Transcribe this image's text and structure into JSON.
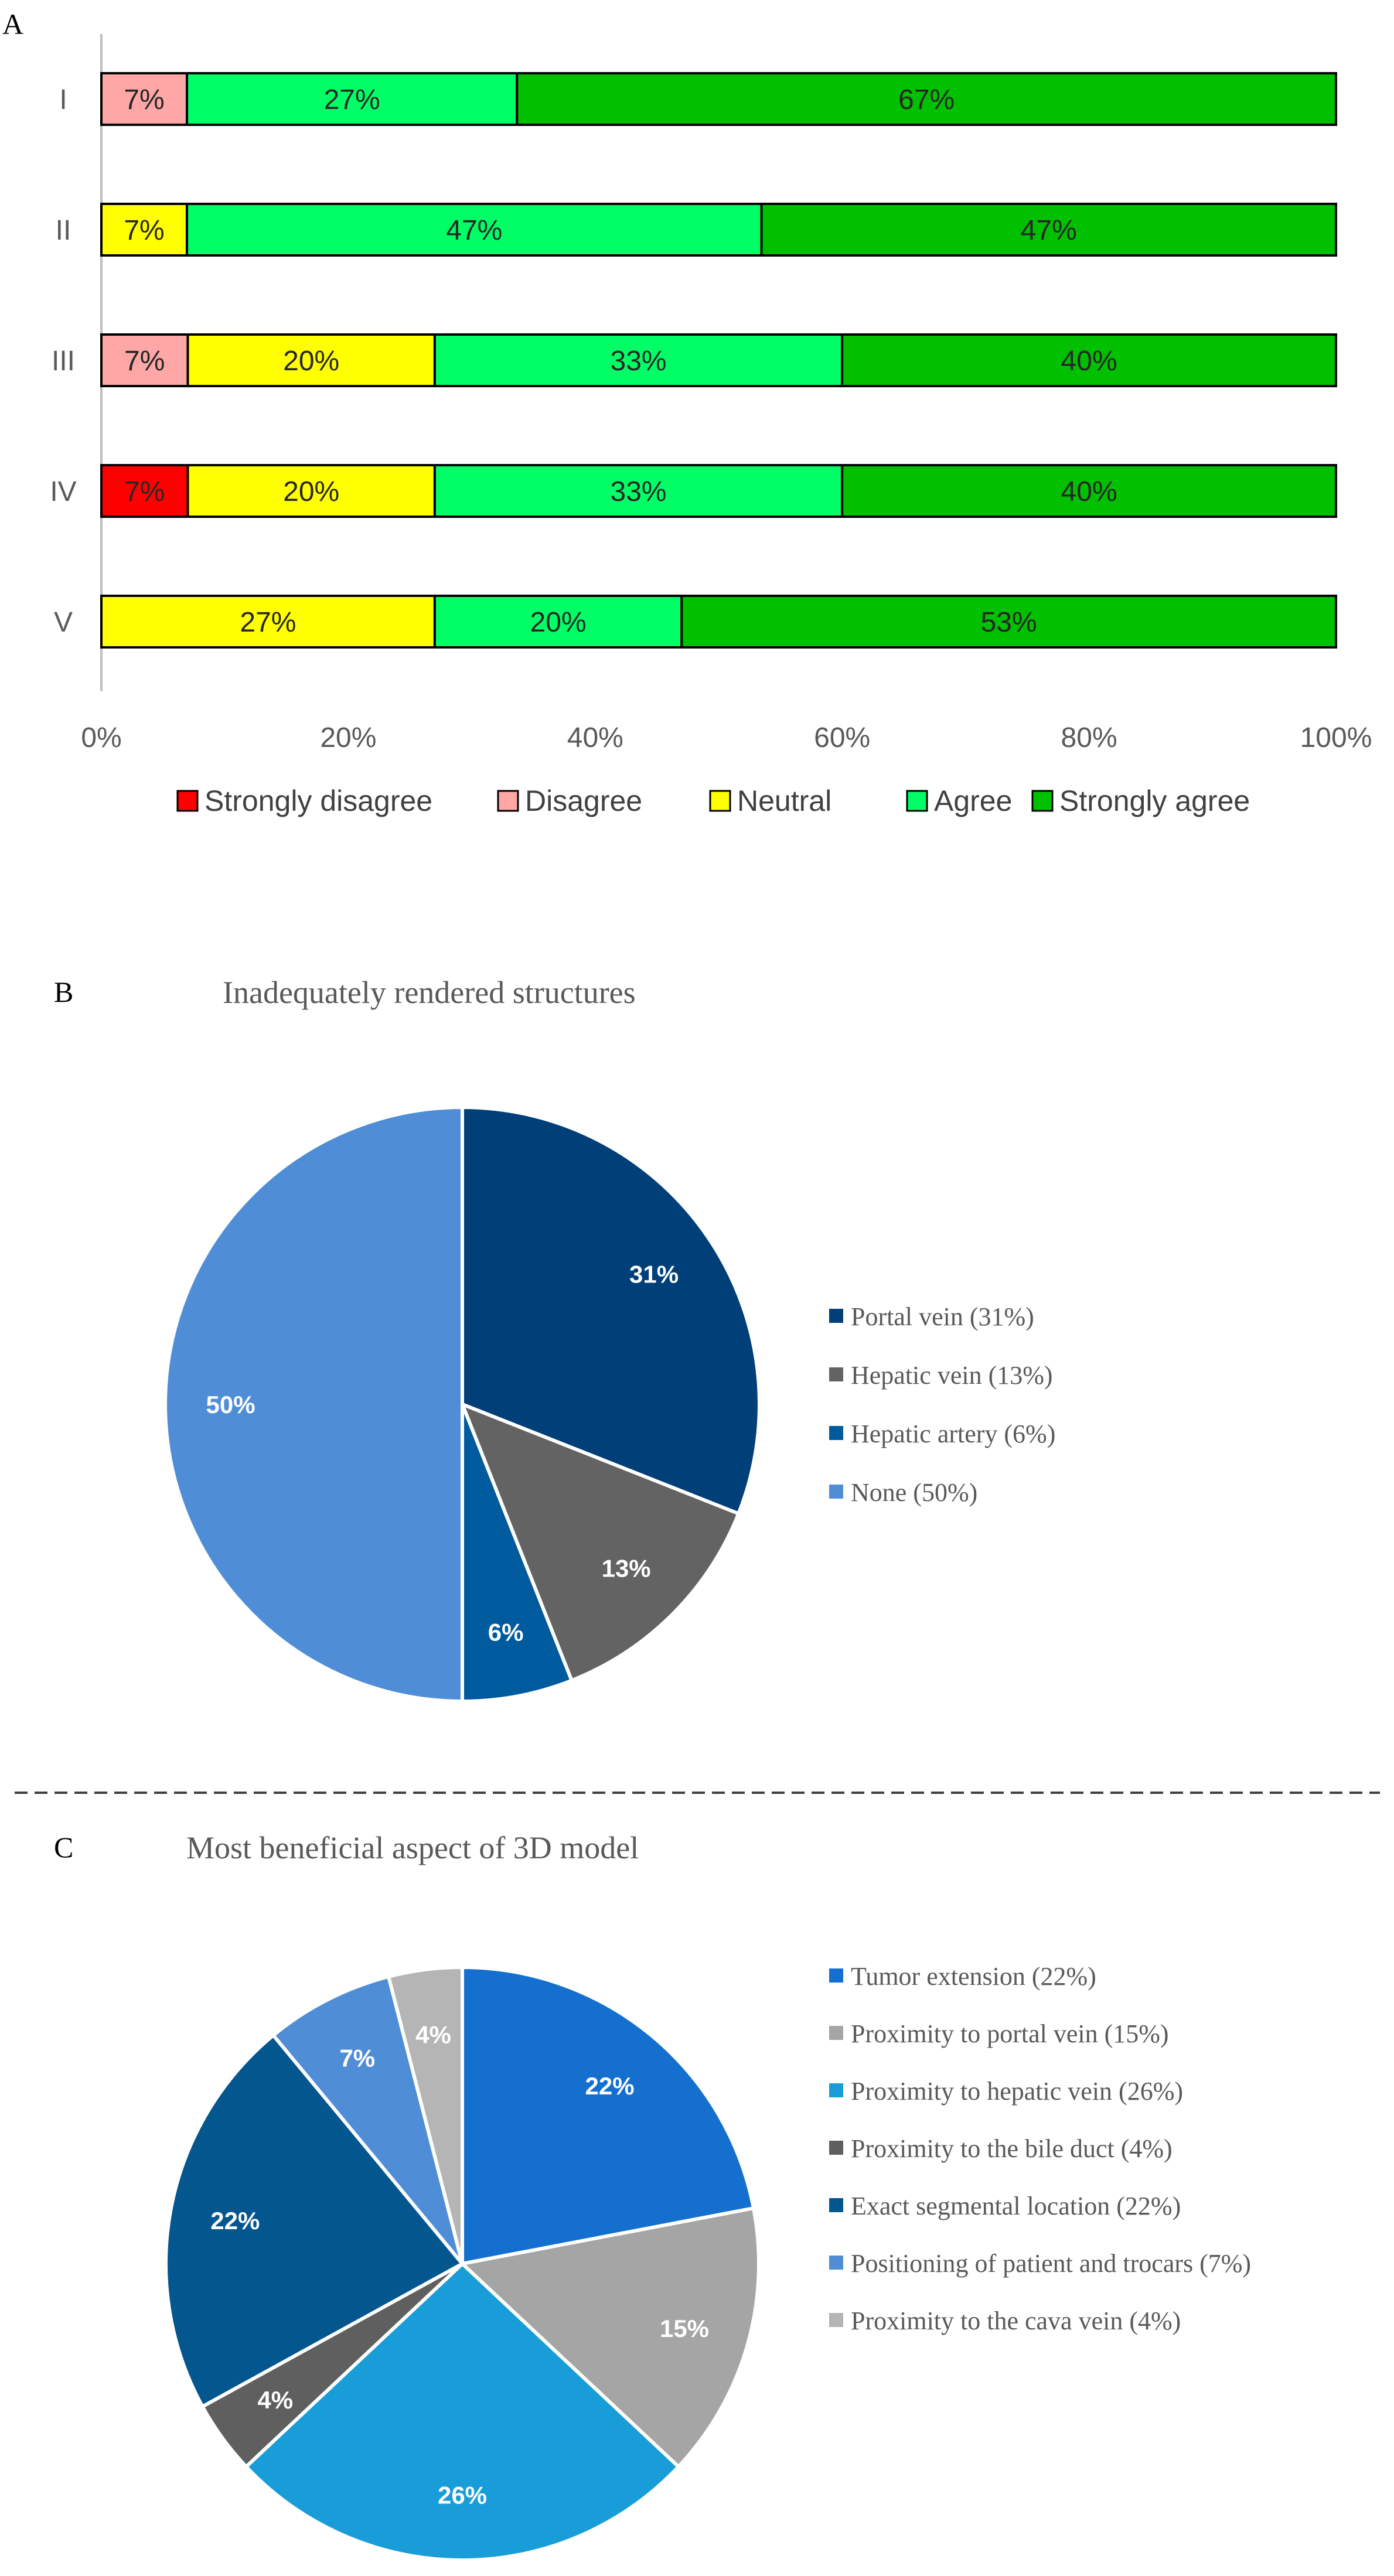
{
  "chart_data": [
    {
      "panel": "A",
      "type": "bar",
      "orientation": "horizontal",
      "stacked": true,
      "categories": [
        "I",
        "II",
        "III",
        "IV",
        "V"
      ],
      "series": [
        {
          "name": "Strongly disagree",
          "color": "#ff0000",
          "values": [
            0,
            0,
            0,
            7,
            0
          ]
        },
        {
          "name": "Disagree",
          "color": "#ffa6a6",
          "values": [
            7,
            0,
            7,
            0,
            0
          ]
        },
        {
          "name": "Neutral",
          "color": "#ffff00",
          "values": [
            0,
            7,
            20,
            20,
            27
          ]
        },
        {
          "name": "Agree",
          "color": "#00ff66",
          "values": [
            27,
            47,
            33,
            33,
            20
          ]
        },
        {
          "name": "Strongly agree",
          "color": "#00c000",
          "values": [
            67,
            47,
            40,
            40,
            53
          ]
        }
      ],
      "labels": [
        [
          "",
          "7%",
          "",
          "27%",
          "67%"
        ],
        [
          "",
          "",
          "7%",
          "47%",
          "47%"
        ],
        [
          "",
          "7%",
          "20%",
          "33%",
          "40%"
        ],
        [
          "7%",
          "",
          "20%",
          "33%",
          "40%"
        ],
        [
          "",
          "",
          "27%",
          "20%",
          "53%"
        ]
      ],
      "xticks": [
        "0%",
        "20%",
        "40%",
        "60%",
        "80%",
        "100%"
      ],
      "xlim": [
        0,
        100
      ],
      "legend_position": "bottom"
    },
    {
      "panel": "B",
      "type": "pie",
      "title": "Inadequately rendered structures",
      "slices": [
        {
          "name": "Portal vein (31%)",
          "label": "31%",
          "value": 31,
          "color": "#003f78"
        },
        {
          "name": "Hepatic vein (13%)",
          "label": "13%",
          "value": 13,
          "color": "#636363"
        },
        {
          "name": "Hepatic artery (6%)",
          "label": "6%",
          "value": 6,
          "color": "#005a9e"
        },
        {
          "name": "None (50%)",
          "label": "50%",
          "value": 50,
          "color": "#4f8ed6"
        }
      ],
      "legend_position": "right"
    },
    {
      "panel": "C",
      "type": "pie",
      "title": "Most beneficial aspect of 3D model",
      "slices": [
        {
          "name": "Tumor extension (22%)",
          "label": "22%",
          "value": 22,
          "color": "#156fcf"
        },
        {
          "name": "Proximity to portal vein (15%)",
          "label": "15%",
          "value": 15,
          "color": "#a5a5a5"
        },
        {
          "name": "Proximity to hepatic vein (26%)",
          "label": "26%",
          "value": 26,
          "color": "#189dd8"
        },
        {
          "name": "Proximity to the bile duct (4%)",
          "label": "4%",
          "value": 4,
          "color": "#5f5f5f"
        },
        {
          "name": "Exact segmental location (22%)",
          "label": "22%",
          "value": 22,
          "color": "#03568e"
        },
        {
          "name": "Positioning of patient and trocars (7%)",
          "label": "7%",
          "value": 7,
          "color": "#4f8ed6"
        },
        {
          "name": "Proximity to the cava vein (4%)",
          "label": "4%",
          "value": 4,
          "color": "#b5b5b5"
        }
      ],
      "legend_position": "right"
    }
  ]
}
